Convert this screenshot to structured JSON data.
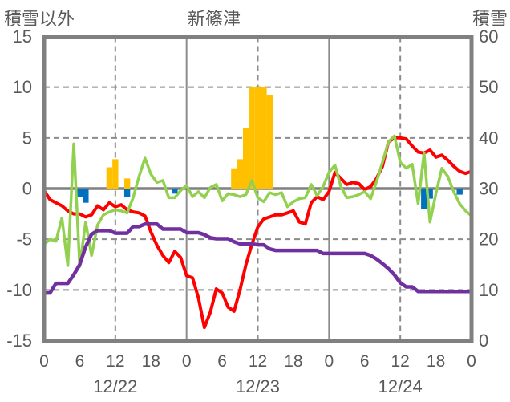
{
  "chart_data": {
    "type": "line",
    "title": "新篠津",
    "left_axis": {
      "label": "積雪以外",
      "min": -15,
      "max": 15,
      "step": 5,
      "ticks": [
        15,
        10,
        5,
        0,
        -5,
        -10,
        -15
      ]
    },
    "right_axis": {
      "label": "積雪",
      "min": 0,
      "max": 60,
      "step": 10,
      "ticks": [
        60,
        50,
        40,
        30,
        20,
        10,
        0
      ]
    },
    "x_axis": {
      "hours_span": 72,
      "hour_tick_step": 6,
      "hour_tick_labels": [
        "0",
        "6",
        "12",
        "18",
        "0",
        "6",
        "12",
        "18",
        "0",
        "6",
        "12",
        "18",
        "0"
      ],
      "date_labels": [
        {
          "label": "12/22",
          "center_hour": 12
        },
        {
          "label": "12/23",
          "center_hour": 36
        },
        {
          "label": "12/24",
          "center_hour": 60
        }
      ],
      "solid_gridline_hours": [
        24,
        48
      ],
      "dashed_gridline_hours": [
        12,
        36,
        60
      ]
    },
    "grid": {
      "horizontal_dashed_left_values": [
        10,
        5,
        -5,
        -10
      ],
      "zero_line_left_value": 0
    },
    "colors": {
      "red_line": "#ff0000",
      "green_line": "#92d050",
      "purple_line": "#7030a0",
      "orange_bars": "#ffc000",
      "blue_bars": "#0070c0",
      "grid": "#8c8c8c",
      "border": "#808080",
      "text": "#595959"
    },
    "series": [
      {
        "name": "red-line",
        "type": "line",
        "axis": "left",
        "color_key": "red_line",
        "values": [
          -0.2,
          -1.1,
          -1.4,
          -1.7,
          -2.2,
          -2.5,
          -2.5,
          -2.8,
          -2.6,
          -1.7,
          -2.1,
          -1.4,
          -1.8,
          -1.6,
          -2.1,
          -2.3,
          -2.4,
          -2.7,
          -4.3,
          -5.6,
          -6.6,
          -7.3,
          -6.2,
          -6.8,
          -8.6,
          -8.8,
          -10.8,
          -13.7,
          -12.2,
          -9.9,
          -10.3,
          -11.7,
          -12.1,
          -10.0,
          -7.5,
          -5.5,
          -3.8,
          -3.0,
          -2.8,
          -2.6,
          -2.6,
          -2.4,
          -2.2,
          -3.3,
          -3.5,
          -1.4,
          -0.8,
          -1.1,
          -0.3,
          1.6,
          1.0,
          0.4,
          0.6,
          0.5,
          -0.1,
          0.2,
          1.0,
          2.2,
          4.6,
          5.0,
          5.0,
          4.9,
          4.2,
          3.6,
          3.5,
          3.8,
          3.1,
          3.3,
          2.8,
          2.2,
          1.7,
          1.5,
          1.7
        ]
      },
      {
        "name": "green-line",
        "type": "line",
        "axis": "left",
        "color_key": "green_line",
        "values": [
          -5.5,
          -5.0,
          -5.2,
          -2.9,
          -7.6,
          4.4,
          -7.7,
          -3.3,
          -6.6,
          -3.6,
          -2.6,
          -2.3,
          -2.1,
          -2.2,
          -2.4,
          -0.9,
          1.2,
          3.0,
          1.4,
          0.6,
          0.8,
          -0.9,
          -0.9,
          -0.2,
          0.3,
          -0.8,
          -0.3,
          -0.9,
          0.1,
          0.4,
          -1.2,
          -0.5,
          -0.6,
          -0.8,
          -0.6,
          0.8,
          -0.9,
          -1.3,
          -0.4,
          -0.6,
          -0.4,
          -1.8,
          -1.3,
          -1.0,
          -0.9,
          0.4,
          -0.7,
          0.2,
          1.6,
          2.3,
          0.2,
          -0.9,
          -0.8,
          -0.6,
          -0.3,
          -1.0,
          0.7,
          2.6,
          4.6,
          5.2,
          2.6,
          2.0,
          2.4,
          -1.5,
          3.5,
          -3.3,
          -0.5,
          2.0,
          1.2,
          -0.3,
          -1.5,
          -2.2,
          -2.7
        ]
      },
      {
        "name": "purple-line",
        "type": "line",
        "axis": "right",
        "color_key": "purple_line",
        "values": [
          9.4,
          9.4,
          11.3,
          11.3,
          11.3,
          13.0,
          15.0,
          18.5,
          21.0,
          21.7,
          21.7,
          21.7,
          21.2,
          21.2,
          21.2,
          22.5,
          22.5,
          23.0,
          23.0,
          23.0,
          22.0,
          22.0,
          22.0,
          22.0,
          21.3,
          21.3,
          21.3,
          20.9,
          20.3,
          20.1,
          20.1,
          20.1,
          19.5,
          19.1,
          19.1,
          19.1,
          18.9,
          18.9,
          18.1,
          17.8,
          17.8,
          17.8,
          17.8,
          17.8,
          17.8,
          17.8,
          17.8,
          17.2,
          17.2,
          17.2,
          17.2,
          17.2,
          17.2,
          17.2,
          17.2,
          16.8,
          16.1,
          15.2,
          14.2,
          13.0,
          11.4,
          10.6,
          10.6,
          9.7,
          9.7,
          9.7,
          9.7,
          9.7,
          9.7,
          9.7,
          9.7,
          9.7,
          9.7
        ]
      },
      {
        "name": "orange-bars",
        "type": "bar",
        "axis": "left",
        "color_key": "orange_bars",
        "points": [
          {
            "hour": 11,
            "value": 2.1
          },
          {
            "hour": 12,
            "value": 2.9
          },
          {
            "hour": 14,
            "value": 1.0
          },
          {
            "hour": 32,
            "value": 2.0
          },
          {
            "hour": 33,
            "value": 2.9
          },
          {
            "hour": 34,
            "value": 6.0
          },
          {
            "hour": 35,
            "value": 10.0
          },
          {
            "hour": 36,
            "value": 10.0
          },
          {
            "hour": 37,
            "value": 10.0
          },
          {
            "hour": 38,
            "value": 9.2
          }
        ]
      },
      {
        "name": "blue-bars",
        "type": "bar",
        "axis": "left",
        "color_key": "blue_bars",
        "points": [
          {
            "hour": 6,
            "value": -0.8
          },
          {
            "hour": 7,
            "value": -1.4
          },
          {
            "hour": 14,
            "value": -0.8
          },
          {
            "hour": 22,
            "value": -0.5
          },
          {
            "hour": 64,
            "value": -2.0
          },
          {
            "hour": 65,
            "value": -1.0
          },
          {
            "hour": 70,
            "value": -0.6
          }
        ]
      }
    ],
    "layout": {
      "plot_left": 55,
      "plot_right": 588,
      "plot_top": 45.5,
      "plot_bottom": 424.5,
      "zero_y": 235
    }
  }
}
